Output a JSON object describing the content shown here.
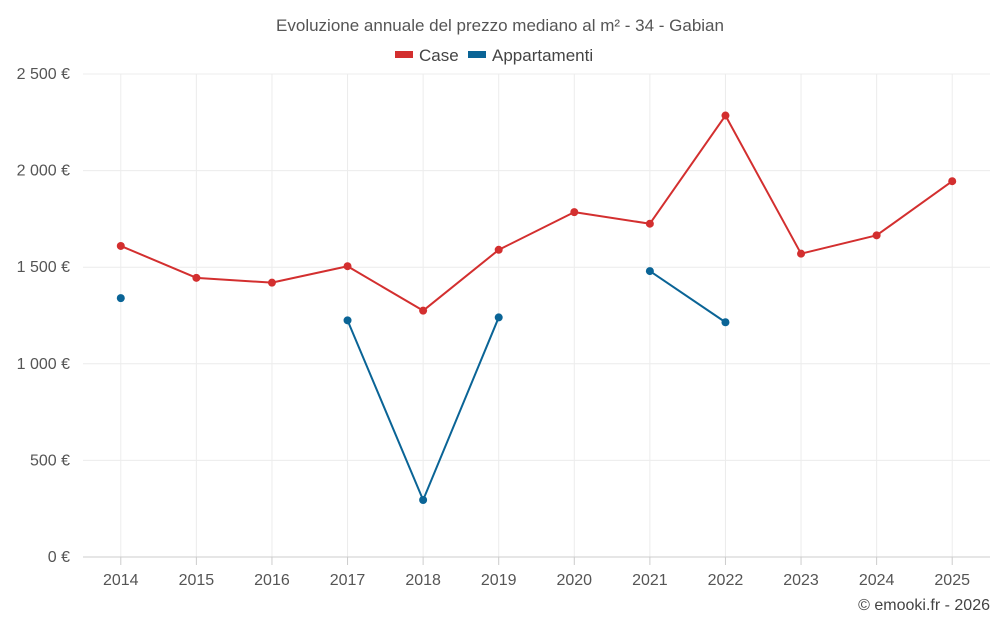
{
  "chart_data": {
    "type": "line",
    "title": "Evoluzione annuale del prezzo mediano al m² - 34 - Gabian",
    "categories": [
      "2014",
      "2015",
      "2016",
      "2017",
      "2018",
      "2019",
      "2020",
      "2021",
      "2022",
      "2023",
      "2024",
      "2025"
    ],
    "ylim": [
      0,
      2500
    ],
    "yticks": [
      0,
      500,
      1000,
      1500,
      2000,
      2500
    ],
    "ytick_labels": [
      "0 €",
      "500 €",
      "1 000 €",
      "1 500 €",
      "2 000 €",
      "2 500 €"
    ],
    "legend_position": "top-center",
    "grid": true,
    "series": [
      {
        "name": "Case",
        "color": "#d32f2f",
        "values": [
          1610,
          1445,
          1420,
          1505,
          1275,
          1590,
          1785,
          1725,
          2285,
          1570,
          1665,
          1945
        ]
      },
      {
        "name": "Appartamenti",
        "color": "#0a6496",
        "values": [
          1340,
          null,
          null,
          1225,
          295,
          1240,
          null,
          1480,
          1215,
          null,
          null,
          null
        ]
      }
    ]
  },
  "credit": "© emooki.fr - 2026"
}
